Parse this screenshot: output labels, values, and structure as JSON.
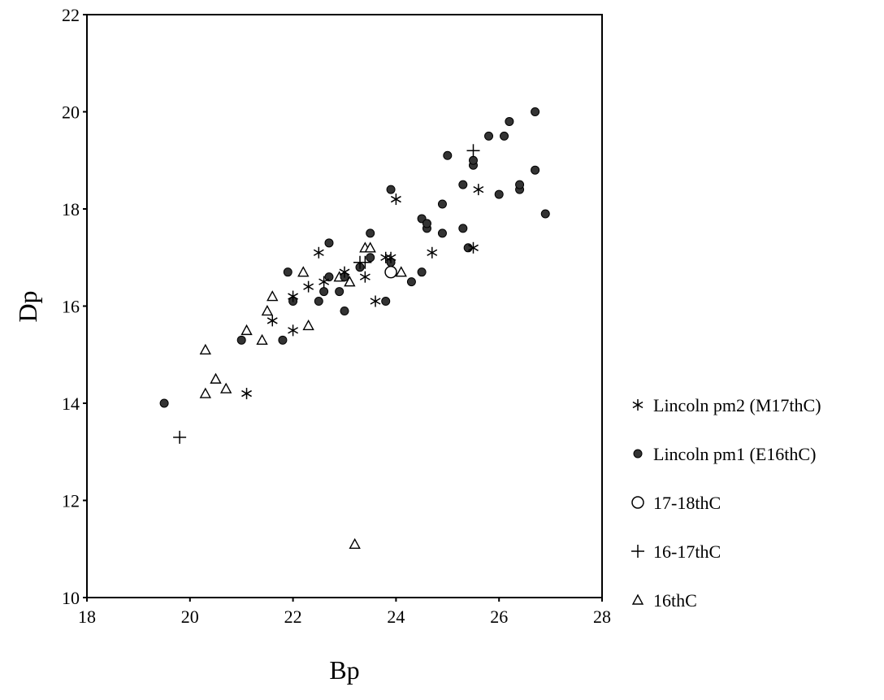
{
  "chart_data": {
    "type": "scatter",
    "title": "",
    "xlabel": "Bp",
    "ylabel": "Dp",
    "xlim": [
      18,
      28
    ],
    "ylim": [
      10,
      22
    ],
    "xticks": [
      "18",
      "20",
      "22",
      "24",
      "26",
      "28"
    ],
    "yticks": [
      "10",
      "12",
      "14",
      "16",
      "18",
      "20",
      "22"
    ],
    "grid": false,
    "legend_position": "right",
    "series": [
      {
        "name": "Lincoln pm2 (M17thC)",
        "marker": "asterisk",
        "color": "#000000",
        "points": [
          [
            21.1,
            14.2
          ],
          [
            21.6,
            15.7
          ],
          [
            22.0,
            15.5
          ],
          [
            22.0,
            16.2
          ],
          [
            22.3,
            16.4
          ],
          [
            22.5,
            17.1
          ],
          [
            22.6,
            16.5
          ],
          [
            23.0,
            16.7
          ],
          [
            23.4,
            16.6
          ],
          [
            23.6,
            16.1
          ],
          [
            23.8,
            17.0
          ],
          [
            23.9,
            17.0
          ],
          [
            24.0,
            18.2
          ],
          [
            24.7,
            17.1
          ],
          [
            25.5,
            17.2
          ],
          [
            25.6,
            18.4
          ]
        ]
      },
      {
        "name": "Lincoln pm1 (E16thC)",
        "marker": "filled-circle",
        "color": "#000000",
        "points": [
          [
            19.5,
            14.0
          ],
          [
            21.0,
            15.3
          ],
          [
            21.8,
            15.3
          ],
          [
            21.9,
            16.7
          ],
          [
            22.0,
            16.1
          ],
          [
            22.5,
            16.1
          ],
          [
            22.6,
            16.3
          ],
          [
            22.7,
            16.6
          ],
          [
            22.7,
            17.3
          ],
          [
            22.9,
            16.3
          ],
          [
            23.0,
            15.9
          ],
          [
            23.0,
            16.6
          ],
          [
            23.3,
            16.8
          ],
          [
            23.5,
            17.0
          ],
          [
            23.5,
            17.5
          ],
          [
            23.8,
            16.1
          ],
          [
            23.9,
            16.9
          ],
          [
            23.9,
            18.4
          ],
          [
            24.3,
            16.5
          ],
          [
            24.5,
            16.7
          ],
          [
            24.5,
            17.8
          ],
          [
            24.6,
            17.6
          ],
          [
            24.6,
            17.7
          ],
          [
            24.9,
            17.5
          ],
          [
            24.9,
            18.1
          ],
          [
            25.0,
            19.1
          ],
          [
            25.3,
            17.6
          ],
          [
            25.3,
            18.5
          ],
          [
            25.4,
            17.2
          ],
          [
            25.5,
            18.9
          ],
          [
            25.5,
            19.0
          ],
          [
            25.8,
            19.5
          ],
          [
            26.0,
            18.3
          ],
          [
            26.1,
            19.5
          ],
          [
            26.2,
            19.8
          ],
          [
            26.4,
            18.4
          ],
          [
            26.4,
            18.5
          ],
          [
            26.7,
            18.8
          ],
          [
            26.7,
            20.0
          ],
          [
            26.9,
            17.9
          ]
        ]
      },
      {
        "name": "17-18thC",
        "marker": "open-circle",
        "color": "#000000",
        "points": [
          [
            23.9,
            16.7
          ]
        ]
      },
      {
        "name": "16-17thC",
        "marker": "plus",
        "color": "#000000",
        "points": [
          [
            19.8,
            13.3
          ],
          [
            23.3,
            16.9
          ],
          [
            23.4,
            16.9
          ],
          [
            25.5,
            19.2
          ]
        ]
      },
      {
        "name": "16thC",
        "marker": "open-triangle",
        "color": "#000000",
        "points": [
          [
            20.3,
            15.1
          ],
          [
            20.3,
            14.2
          ],
          [
            20.5,
            14.5
          ],
          [
            20.7,
            14.3
          ],
          [
            21.1,
            15.5
          ],
          [
            21.4,
            15.3
          ],
          [
            21.5,
            15.9
          ],
          [
            21.6,
            16.2
          ],
          [
            22.2,
            16.7
          ],
          [
            22.3,
            15.6
          ],
          [
            22.9,
            16.6
          ],
          [
            23.1,
            16.5
          ],
          [
            23.2,
            11.1
          ],
          [
            23.4,
            17.2
          ],
          [
            23.5,
            17.2
          ],
          [
            24.1,
            16.7
          ]
        ]
      }
    ]
  }
}
